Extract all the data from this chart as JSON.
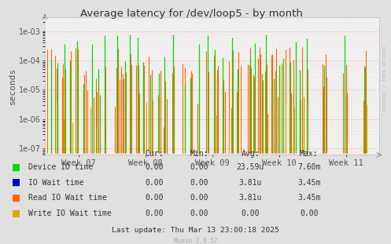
{
  "title": "Average latency for /dev/loop5 - by month",
  "ylabel": "seconds",
  "background_color": "#e0e0e0",
  "plot_bg_color": "#f0f0f0",
  "grid_color_major": "#ff8888",
  "grid_color_minor": "#ffbbbb",
  "ylim_min": 6e-08,
  "ylim_max": 0.003,
  "yticks": [
    1e-07,
    1e-06,
    1e-05,
    0.0001,
    0.001
  ],
  "week_labels": [
    "Week 07",
    "Week 08",
    "Week 09",
    "Week 10",
    "Week 11"
  ],
  "colors": {
    "device_io": "#00dd00",
    "io_wait": "#0000cc",
    "read_io_wait": "#ff6600",
    "write_io_wait": "#ddaa00"
  },
  "legend_items": [
    {
      "label": "Device IO time",
      "color": "#00dd00"
    },
    {
      "label": "IO Wait time",
      "color": "#0000cc"
    },
    {
      "label": "Read IO Wait time",
      "color": "#ff6600"
    },
    {
      "label": "Write IO Wait time",
      "color": "#ddaa00"
    }
  ],
  "table_headers": [
    "Cur:",
    "Min:",
    "Avg:",
    "Max:"
  ],
  "table_rows": [
    [
      "Device IO time",
      "0.00",
      "0.00",
      "23.59u",
      "7.60m"
    ],
    [
      "IO Wait time",
      "0.00",
      "0.00",
      "3.81u",
      "3.45m"
    ],
    [
      "Read IO Wait time",
      "0.00",
      "0.00",
      "3.81u",
      "3.45m"
    ],
    [
      "Write IO Wait time",
      "0.00",
      "0.00",
      "0.00",
      "0.00"
    ]
  ],
  "footer": "Last update: Thu Mar 13 23:00:18 2025",
  "munin_version": "Munin 2.0.57",
  "watermark": "RRDTOOL / TOBI OETIKER"
}
